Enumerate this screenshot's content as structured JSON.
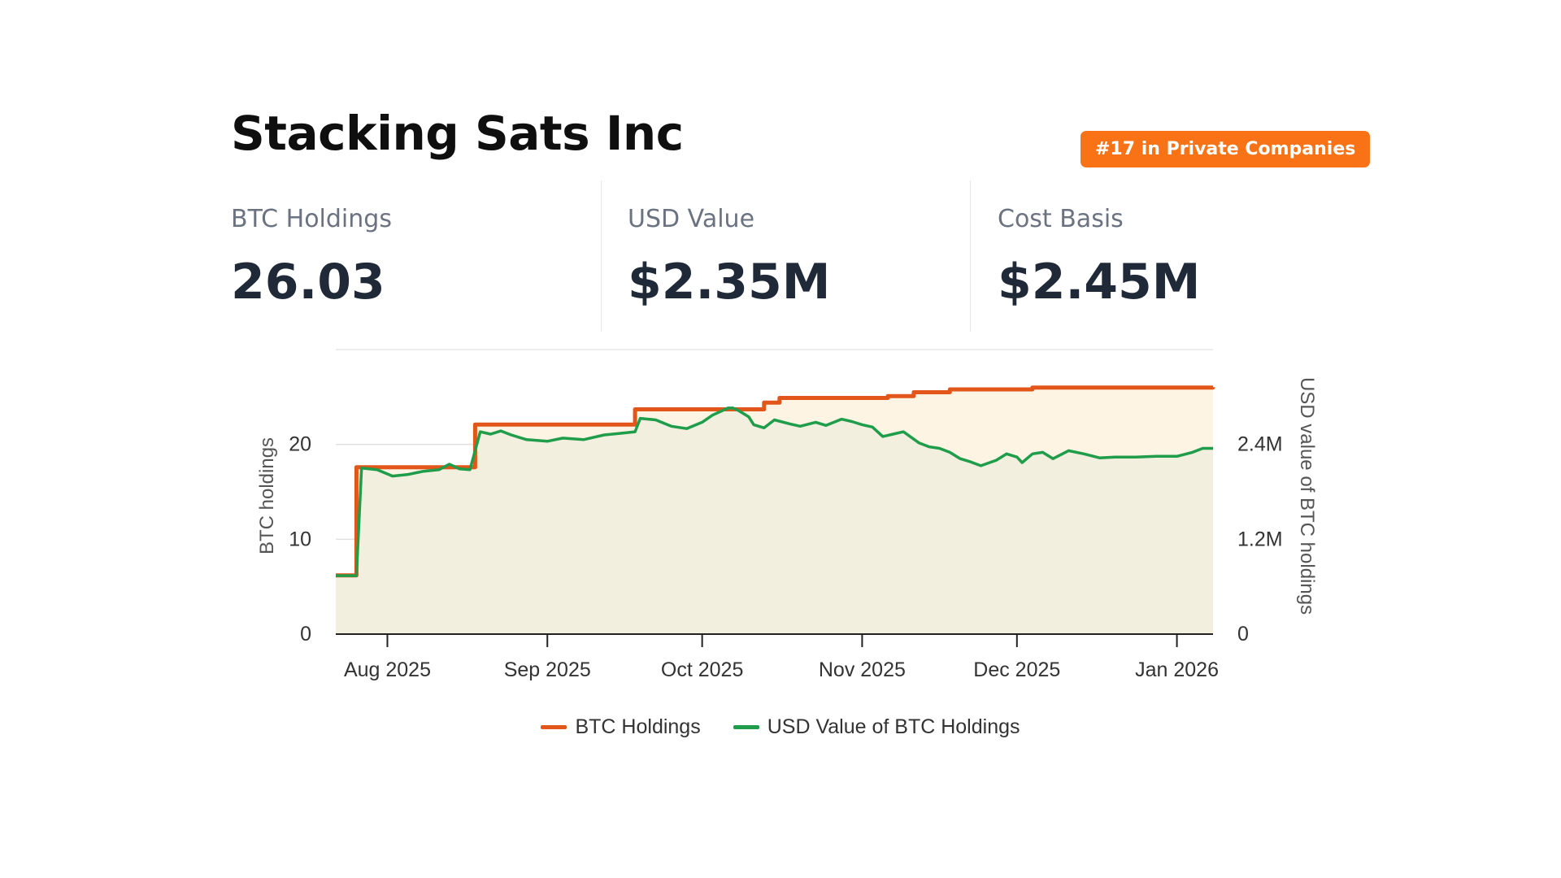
{
  "header": {
    "title": "Stacking Sats Inc",
    "rank_badge": "#17 in Private Companies"
  },
  "stats": [
    {
      "label": "BTC Holdings",
      "value": "26.03"
    },
    {
      "label": "USD Value",
      "value": "$2.35M"
    },
    {
      "label": "Cost Basis",
      "value": "$2.45M"
    }
  ],
  "colors": {
    "accent": "#f97316",
    "btc_line": "#e2561a",
    "usd_line": "#1f9d4a",
    "btc_fill": "#fdf4e3",
    "usd_fill": "#f2efdf"
  },
  "chart_data": {
    "type": "line",
    "title": "",
    "xlabel": "",
    "ylabel": "BTC holdings",
    "y2label": "USD value of BTC holdings",
    "ylim": [
      0,
      30
    ],
    "y2lim": [
      0,
      3600000
    ],
    "y_ticks": [
      {
        "value": 0,
        "label": "0"
      },
      {
        "value": 10,
        "label": "10"
      },
      {
        "value": 20,
        "label": "20"
      }
    ],
    "y2_ticks": [
      {
        "value": 0,
        "label": "0"
      },
      {
        "value": 1200000,
        "label": "1.2M"
      },
      {
        "value": 2400000,
        "label": "2.4M"
      }
    ],
    "xlim": [
      "2025-07-22",
      "2026-01-08"
    ],
    "x_ticks": [
      {
        "date": "2025-08-01",
        "label": "Aug 2025"
      },
      {
        "date": "2025-09-01",
        "label": "Sep 2025"
      },
      {
        "date": "2025-10-01",
        "label": "Oct 2025"
      },
      {
        "date": "2025-11-01",
        "label": "Nov 2025"
      },
      {
        "date": "2025-12-01",
        "label": "Dec 2025"
      },
      {
        "date": "2026-01-01",
        "label": "Jan 2026"
      }
    ],
    "grid": true,
    "legend": "bottom-center",
    "series": [
      {
        "name": "BTC Holdings",
        "axis": "left",
        "step": true,
        "points": [
          [
            "2025-07-22",
            6.2
          ],
          [
            "2025-07-26",
            17.6
          ],
          [
            "2025-08-18",
            22.1
          ],
          [
            "2025-09-18",
            23.7
          ],
          [
            "2025-10-13",
            24.4
          ],
          [
            "2025-10-16",
            24.9
          ],
          [
            "2025-11-06",
            25.1
          ],
          [
            "2025-11-11",
            25.5
          ],
          [
            "2025-11-18",
            25.8
          ],
          [
            "2025-12-04",
            26.0
          ],
          [
            "2026-01-08",
            26.03
          ]
        ]
      },
      {
        "name": "USD Value of BTC Holdings",
        "axis": "right",
        "step": false,
        "points": [
          [
            "2025-07-22",
            740000
          ],
          [
            "2025-07-26",
            740000
          ],
          [
            "2025-07-27",
            2100000
          ],
          [
            "2025-07-30",
            2080000
          ],
          [
            "2025-08-02",
            2000000
          ],
          [
            "2025-08-05",
            2020000
          ],
          [
            "2025-08-08",
            2060000
          ],
          [
            "2025-08-11",
            2080000
          ],
          [
            "2025-08-13",
            2150000
          ],
          [
            "2025-08-15",
            2090000
          ],
          [
            "2025-08-17",
            2080000
          ],
          [
            "2025-08-19",
            2560000
          ],
          [
            "2025-08-21",
            2530000
          ],
          [
            "2025-08-23",
            2570000
          ],
          [
            "2025-08-25",
            2520000
          ],
          [
            "2025-08-28",
            2460000
          ],
          [
            "2025-09-01",
            2440000
          ],
          [
            "2025-09-04",
            2480000
          ],
          [
            "2025-09-08",
            2460000
          ],
          [
            "2025-09-12",
            2520000
          ],
          [
            "2025-09-15",
            2540000
          ],
          [
            "2025-09-18",
            2560000
          ],
          [
            "2025-09-19",
            2730000
          ],
          [
            "2025-09-22",
            2710000
          ],
          [
            "2025-09-25",
            2630000
          ],
          [
            "2025-09-28",
            2600000
          ],
          [
            "2025-10-01",
            2680000
          ],
          [
            "2025-10-03",
            2770000
          ],
          [
            "2025-10-06",
            2860000
          ],
          [
            "2025-10-07",
            2860000
          ],
          [
            "2025-10-08",
            2830000
          ],
          [
            "2025-10-10",
            2750000
          ],
          [
            "2025-10-11",
            2650000
          ],
          [
            "2025-10-13",
            2610000
          ],
          [
            "2025-10-15",
            2710000
          ],
          [
            "2025-10-18",
            2660000
          ],
          [
            "2025-10-20",
            2630000
          ],
          [
            "2025-10-23",
            2680000
          ],
          [
            "2025-10-25",
            2640000
          ],
          [
            "2025-10-28",
            2720000
          ],
          [
            "2025-10-30",
            2690000
          ],
          [
            "2025-11-01",
            2650000
          ],
          [
            "2025-11-03",
            2620000
          ],
          [
            "2025-11-05",
            2500000
          ],
          [
            "2025-11-07",
            2530000
          ],
          [
            "2025-11-09",
            2560000
          ],
          [
            "2025-11-12",
            2420000
          ],
          [
            "2025-11-14",
            2370000
          ],
          [
            "2025-11-16",
            2350000
          ],
          [
            "2025-11-18",
            2300000
          ],
          [
            "2025-11-20",
            2220000
          ],
          [
            "2025-11-22",
            2180000
          ],
          [
            "2025-11-24",
            2130000
          ],
          [
            "2025-11-27",
            2200000
          ],
          [
            "2025-11-29",
            2280000
          ],
          [
            "2025-12-01",
            2240000
          ],
          [
            "2025-12-02",
            2170000
          ],
          [
            "2025-12-04",
            2280000
          ],
          [
            "2025-12-06",
            2300000
          ],
          [
            "2025-12-08",
            2220000
          ],
          [
            "2025-12-11",
            2320000
          ],
          [
            "2025-12-14",
            2280000
          ],
          [
            "2025-12-17",
            2230000
          ],
          [
            "2025-12-20",
            2240000
          ],
          [
            "2025-12-24",
            2240000
          ],
          [
            "2025-12-28",
            2250000
          ],
          [
            "2026-01-01",
            2250000
          ],
          [
            "2026-01-04",
            2300000
          ],
          [
            "2026-01-06",
            2350000
          ],
          [
            "2026-01-08",
            2350000
          ]
        ]
      }
    ]
  }
}
